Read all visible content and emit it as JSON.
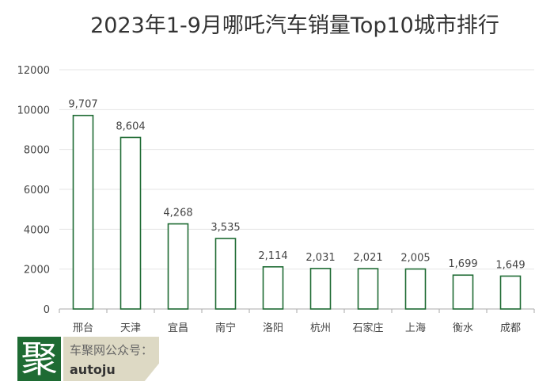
{
  "chart_data": {
    "type": "bar",
    "title": "2023年1-9月哪吒汽车销量Top10城市排行",
    "categories": [
      "邢台",
      "天津",
      "宜昌",
      "南宁",
      "洛阳",
      "杭州",
      "石家庄",
      "上海",
      "衡水",
      "成都"
    ],
    "values": [
      9707,
      8604,
      4268,
      3535,
      2114,
      2031,
      2021,
      2005,
      1699,
      1649
    ],
    "value_labels": [
      "9,707",
      "8,604",
      "4,268",
      "3,535",
      "2,114",
      "2,031",
      "2,021",
      "2,005",
      "1,699",
      "1,649"
    ],
    "xlabel": "",
    "ylabel": "",
    "ylim": [
      0,
      12000
    ],
    "yticks": [
      "0",
      "2000",
      "4000",
      "6000",
      "8000",
      "10000",
      "12000"
    ],
    "grid": true,
    "legend": "none",
    "colors": {
      "bar_stroke": "#1e6b33",
      "bar_fill": "#ffffff"
    }
  },
  "watermark": {
    "logo_char": "聚",
    "line1": "车聚网公众号：",
    "line2": "autoju"
  }
}
